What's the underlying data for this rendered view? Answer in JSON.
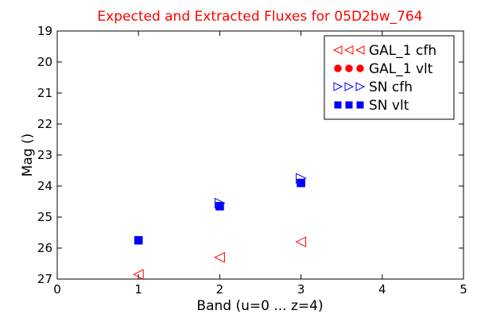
{
  "chart_data": {
    "type": "scatter",
    "title": "Expected and Extracted Fluxes for 05D2bw_764",
    "xlabel": "Band (u=0 ... z=4)",
    "ylabel": "Mag ()",
    "xlim": [
      0,
      5
    ],
    "ylim": [
      27,
      19
    ],
    "y_inverted": true,
    "x_ticks": [
      "0",
      "1",
      "2",
      "3",
      "4",
      "5"
    ],
    "y_ticks": [
      "19",
      "20",
      "21",
      "22",
      "23",
      "24",
      "25",
      "26",
      "27"
    ],
    "grid": false,
    "legend_position": "top-right",
    "colors": {
      "title": "#ff0000",
      "galaxy": "#ff0000",
      "sn": "#0000ff"
    },
    "series": [
      {
        "name": "GAL_1 cfh",
        "marker": "triangle-left",
        "color": "#ff0000",
        "filled": false,
        "points": [
          {
            "x": 1,
            "y": 26.85
          },
          {
            "x": 2,
            "y": 26.3
          },
          {
            "x": 3,
            "y": 25.8
          }
        ]
      },
      {
        "name": "GAL_1 vlt",
        "marker": "circle",
        "color": "#ff0000",
        "filled": true,
        "points": []
      },
      {
        "name": "SN cfh",
        "marker": "triangle-right",
        "color": "#0000ff",
        "filled": false,
        "points": [
          {
            "x": 2,
            "y": 24.55
          },
          {
            "x": 3,
            "y": 23.75
          }
        ]
      },
      {
        "name": "SN vlt",
        "marker": "square",
        "color": "#0000ff",
        "filled": true,
        "points": [
          {
            "x": 1,
            "y": 25.75
          },
          {
            "x": 2,
            "y": 24.65
          },
          {
            "x": 3,
            "y": 23.9
          }
        ]
      }
    ]
  }
}
